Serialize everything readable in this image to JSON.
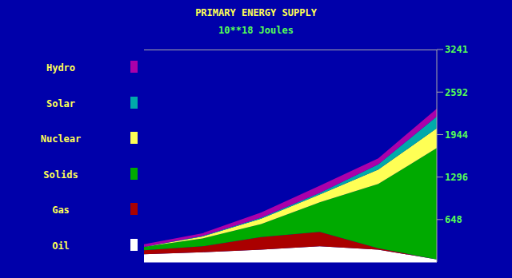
{
  "chart_data": {
    "type": "area",
    "title": "PRIMARY ENERGY SUPPLY",
    "subtitle": "10**18 Joules",
    "categories": [
      null,
      null,
      null,
      null,
      null,
      null
    ],
    "series": [
      {
        "name": "Oil",
        "color": "#ffffff",
        "values": [
          120,
          150,
          190,
          240,
          190,
          40
        ]
      },
      {
        "name": "Gas",
        "color": "#aa0000",
        "values": [
          60,
          90,
          190,
          220,
          20,
          0
        ]
      },
      {
        "name": "Solids",
        "color": "#00aa00",
        "values": [
          50,
          120,
          200,
          450,
          980,
          1700
        ]
      },
      {
        "name": "Nuclear",
        "color": "#ffff55",
        "values": [
          0,
          30,
          80,
          120,
          220,
          300
        ]
      },
      {
        "name": "Solar",
        "color": "#00aaaa",
        "values": [
          0,
          10,
          15,
          25,
          80,
          180
        ]
      },
      {
        "name": "Hydro",
        "color": "#aa00aa",
        "values": [
          40,
          40,
          80,
          110,
          90,
          120
        ]
      }
    ],
    "ylim": [
      0,
      3241
    ],
    "yticks": [
      648,
      1296,
      1944,
      2592,
      3241
    ],
    "stacked": true,
    "legend": "left",
    "tick_labels": "y"
  }
}
